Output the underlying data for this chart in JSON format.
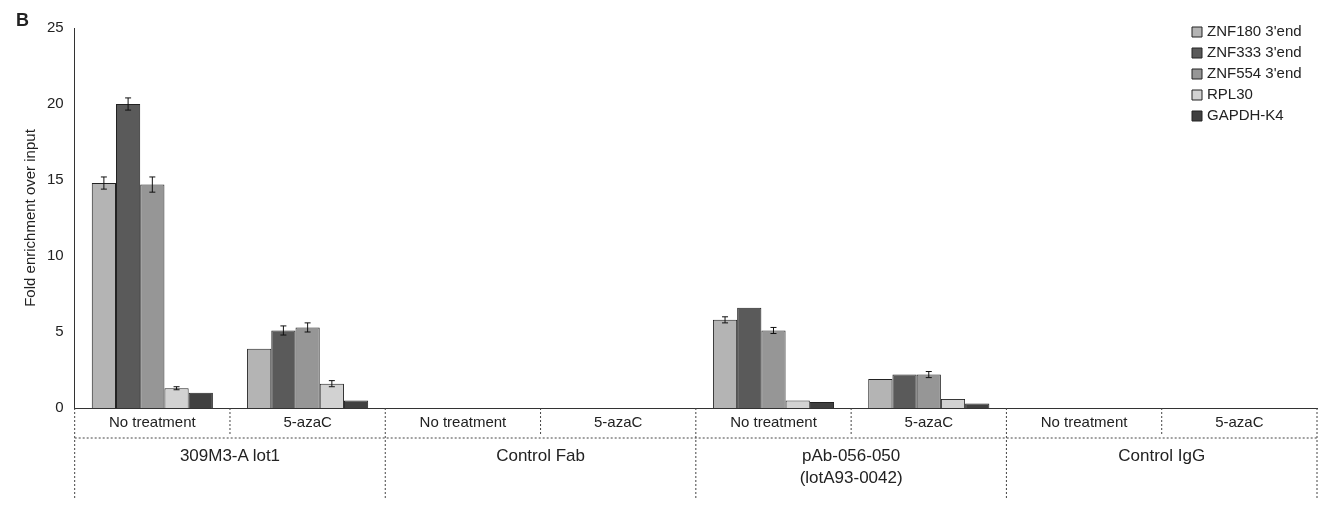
{
  "chart_data": {
    "type": "bar",
    "title": "B",
    "ylabel": "Fold enrichment over input",
    "categories": [
      "No treatment",
      "5-azaC",
      "No treatment",
      "5-azaC",
      "No treatment",
      "5-azaC",
      "No treatment",
      "5-azaC"
    ],
    "annotations": [
      "309M3-A lot1",
      "Control Fab",
      "pAb-056-050\n(lotA93-0042)",
      "Control IgG"
    ],
    "series": [
      {
        "name": "ZNF180 3'end",
        "color": "#b4b4b4",
        "values": [
          14.8,
          3.9,
          0,
          0,
          5.8,
          1.9,
          0,
          0
        ],
        "errors": [
          0.4,
          null,
          null,
          null,
          0.2,
          null,
          null,
          null
        ]
      },
      {
        "name": "ZNF333 3'end",
        "color": "#5a5a5a",
        "values": [
          20,
          5.1,
          0,
          0,
          6.6,
          2.2,
          0,
          0
        ],
        "errors": [
          0.4,
          0.3,
          null,
          null,
          null,
          null,
          null,
          null
        ]
      },
      {
        "name": "ZNF554 3'end",
        "color": "#969696",
        "values": [
          14.7,
          5.3,
          0,
          0,
          5.1,
          2.2,
          0,
          0
        ],
        "errors": [
          0.5,
          0.3,
          null,
          null,
          0.2,
          0.2,
          null,
          null
        ]
      },
      {
        "name": "RPL30",
        "color": "#d2d2d2",
        "values": [
          1.3,
          1.6,
          0,
          0,
          0.5,
          0.6,
          0,
          0
        ],
        "errors": [
          0.1,
          0.2,
          null,
          null,
          null,
          null,
          null,
          null
        ]
      },
      {
        "name": "GAPDH-K4",
        "color": "#404040",
        "values": [
          1.0,
          0.5,
          0,
          0,
          0.4,
          0.3,
          0,
          0
        ]
      }
    ],
    "ylim": [
      0,
      25
    ],
    "yticks": [
      0,
      5,
      10,
      15,
      20,
      25
    ],
    "grid": false,
    "legend": "top right"
  }
}
